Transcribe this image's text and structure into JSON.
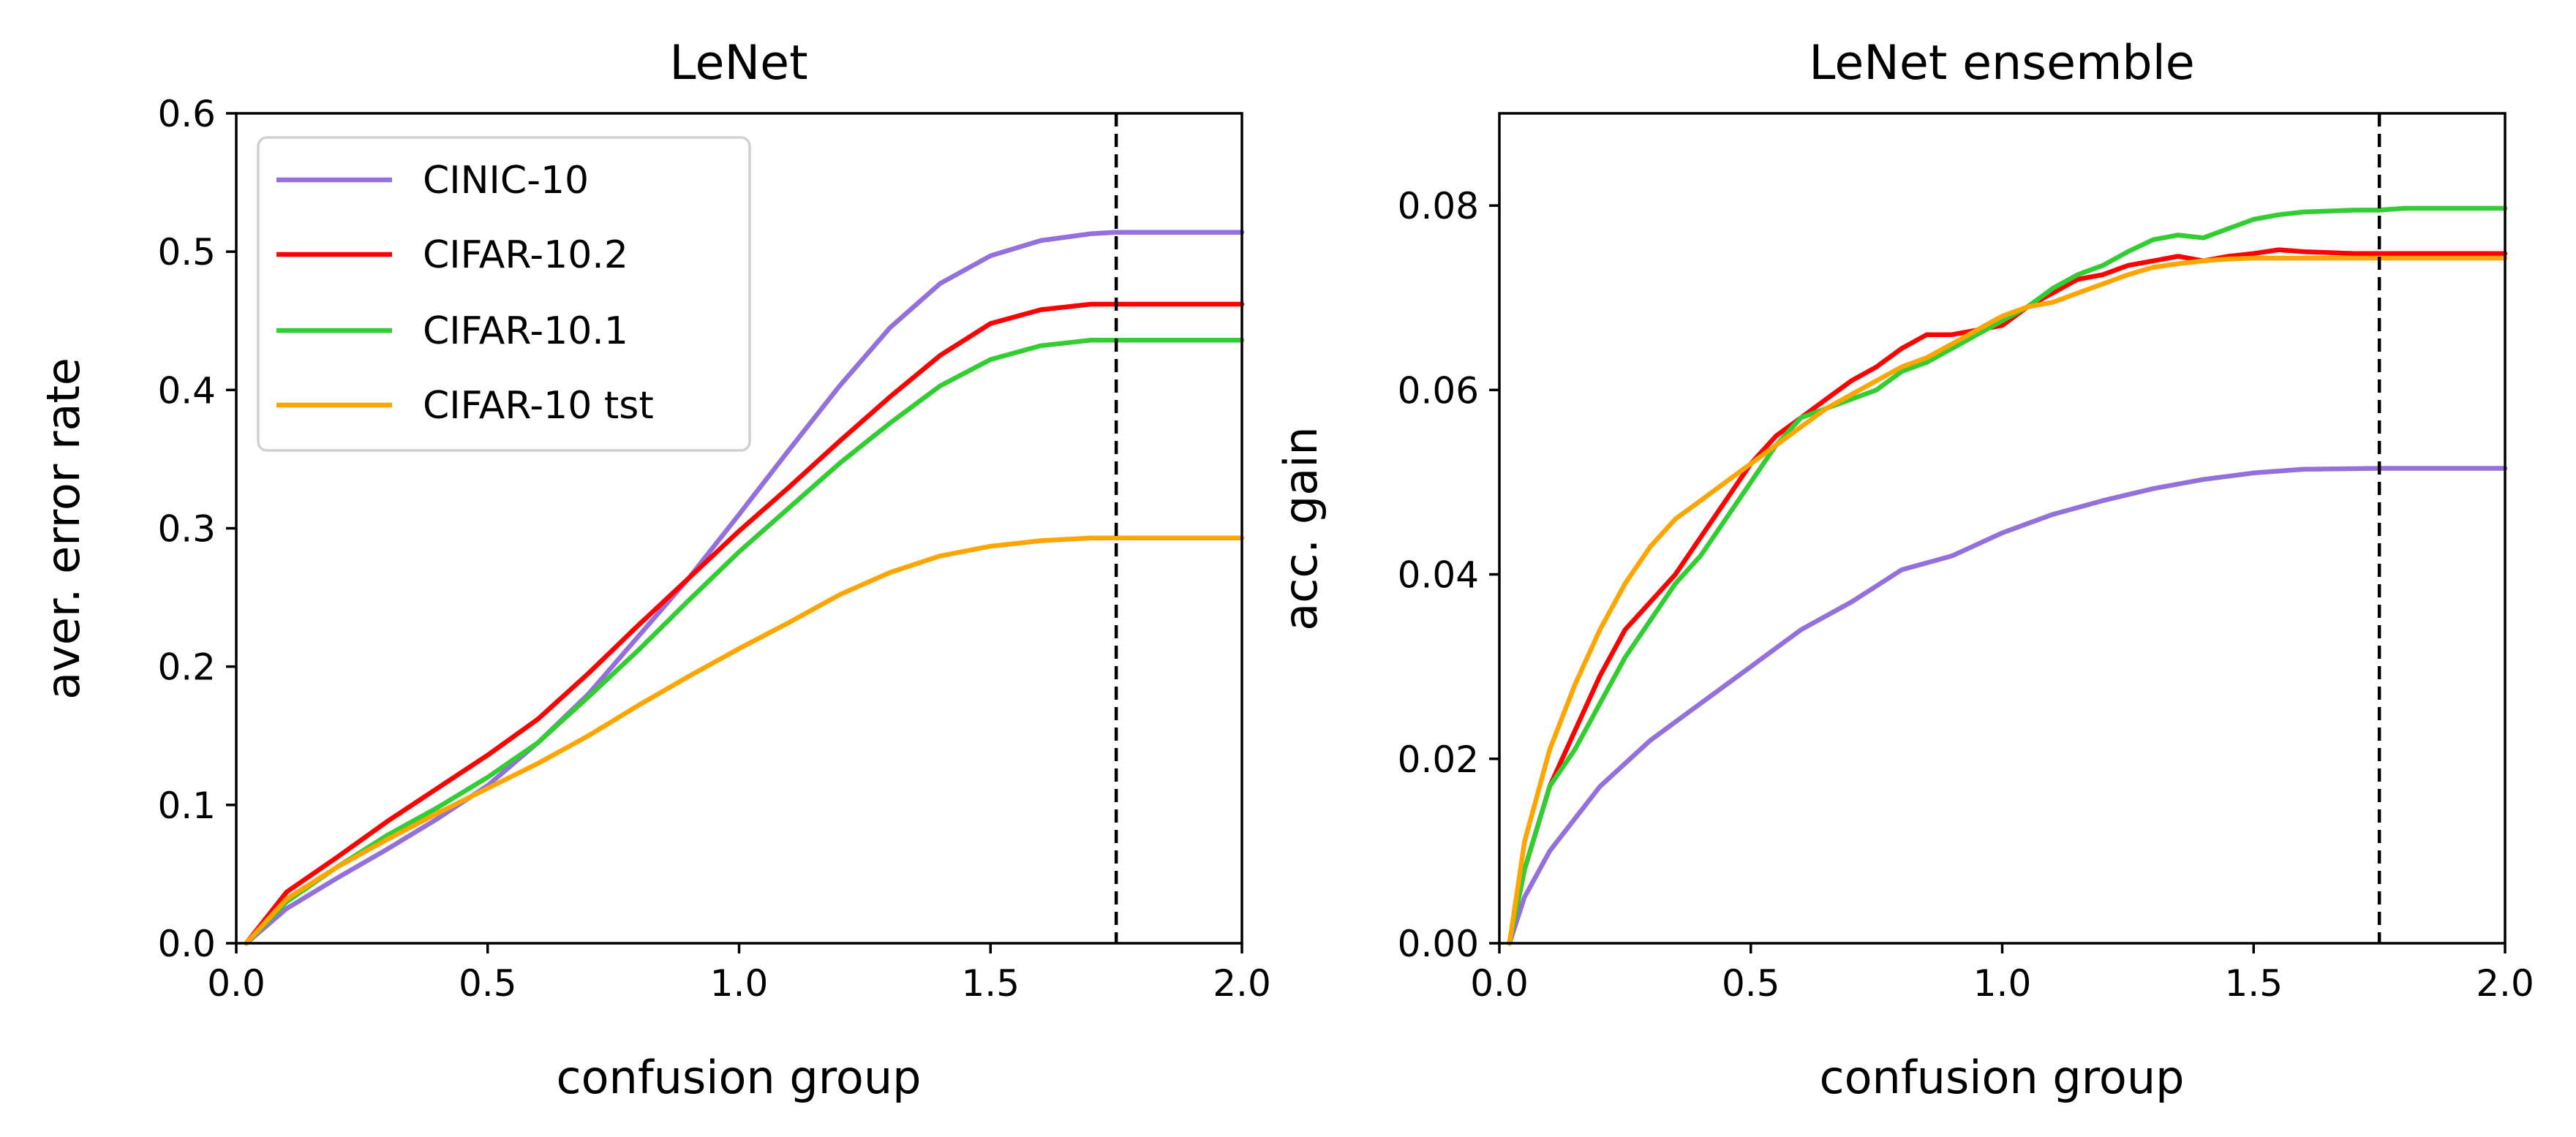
{
  "colors": {
    "CINIC-10": "#9370DB",
    "CIFAR-10.2": "#FF0000",
    "CIFAR-10.1": "#32CD32",
    "CIFAR-10 tst": "#FFA500"
  },
  "chart_data": [
    {
      "type": "line",
      "title": "LeNet",
      "xlabel": "confusion group",
      "ylabel": "aver. error rate",
      "xlim": [
        0,
        2.0
      ],
      "ylim": [
        0,
        0.6
      ],
      "xticks": [
        0.0,
        0.5,
        1.0,
        1.5,
        2.0
      ],
      "xtick_labels": [
        "0.0",
        "0.5",
        "1.0",
        "1.5",
        "2.0"
      ],
      "yticks": [
        0.0,
        0.1,
        0.2,
        0.3,
        0.4,
        0.5,
        0.6
      ],
      "ytick_labels": [
        "0.0",
        "0.1",
        "0.2",
        "0.3",
        "0.4",
        "0.5",
        "0.6"
      ],
      "grid": false,
      "legend": "upper-left",
      "vline_x": 1.75,
      "series": [
        {
          "name": "CINIC-10",
          "x": [
            0.02,
            0.1,
            0.2,
            0.3,
            0.4,
            0.5,
            0.6,
            0.7,
            0.8,
            0.9,
            1.0,
            1.1,
            1.2,
            1.3,
            1.4,
            1.5,
            1.6,
            1.7,
            1.75,
            1.8,
            2.0
          ],
          "y": [
            0.0,
            0.025,
            0.047,
            0.068,
            0.09,
            0.114,
            0.145,
            0.18,
            0.222,
            0.264,
            0.31,
            0.357,
            0.403,
            0.445,
            0.477,
            0.497,
            0.508,
            0.513,
            0.514,
            0.514,
            0.514
          ]
        },
        {
          "name": "CIFAR-10.2",
          "x": [
            0.02,
            0.1,
            0.2,
            0.3,
            0.4,
            0.5,
            0.6,
            0.7,
            0.8,
            0.9,
            1.0,
            1.1,
            1.2,
            1.3,
            1.4,
            1.5,
            1.6,
            1.7,
            1.75,
            1.8,
            2.0
          ],
          "y": [
            0.0,
            0.037,
            0.062,
            0.088,
            0.112,
            0.136,
            0.162,
            0.195,
            0.23,
            0.264,
            0.298,
            0.33,
            0.363,
            0.395,
            0.425,
            0.448,
            0.458,
            0.462,
            0.462,
            0.462,
            0.462
          ]
        },
        {
          "name": "CIFAR-10.1",
          "x": [
            0.02,
            0.1,
            0.2,
            0.3,
            0.4,
            0.5,
            0.6,
            0.7,
            0.8,
            0.9,
            1.0,
            1.1,
            1.2,
            1.3,
            1.4,
            1.5,
            1.6,
            1.7,
            1.75,
            1.8,
            2.0
          ],
          "y": [
            0.0,
            0.03,
            0.055,
            0.078,
            0.098,
            0.12,
            0.145,
            0.178,
            0.212,
            0.248,
            0.283,
            0.315,
            0.347,
            0.376,
            0.403,
            0.422,
            0.432,
            0.436,
            0.436,
            0.436,
            0.436
          ]
        },
        {
          "name": "CIFAR-10 tst",
          "x": [
            0.02,
            0.1,
            0.2,
            0.3,
            0.4,
            0.5,
            0.6,
            0.7,
            0.8,
            0.9,
            1.0,
            1.1,
            1.2,
            1.3,
            1.4,
            1.5,
            1.6,
            1.7,
            1.75,
            1.8,
            2.0
          ],
          "y": [
            0.0,
            0.032,
            0.055,
            0.075,
            0.094,
            0.112,
            0.13,
            0.15,
            0.172,
            0.193,
            0.213,
            0.232,
            0.252,
            0.268,
            0.28,
            0.287,
            0.291,
            0.293,
            0.293,
            0.293,
            0.293
          ]
        }
      ]
    },
    {
      "type": "line",
      "title": "LeNet ensemble",
      "xlabel": "confusion group",
      "ylabel": "acc. gain",
      "xlim": [
        0,
        2.0
      ],
      "ylim": [
        0,
        0.09
      ],
      "xticks": [
        0.0,
        0.5,
        1.0,
        1.5,
        2.0
      ],
      "xtick_labels": [
        "0.0",
        "0.5",
        "1.0",
        "1.5",
        "2.0"
      ],
      "yticks": [
        0.0,
        0.02,
        0.04,
        0.06,
        0.08
      ],
      "ytick_labels": [
        "0.00",
        "0.02",
        "0.04",
        "0.06",
        "0.08"
      ],
      "grid": false,
      "legend": "none",
      "vline_x": 1.75,
      "series": [
        {
          "name": "CINIC-10",
          "x": [
            0.02,
            0.05,
            0.1,
            0.2,
            0.3,
            0.4,
            0.5,
            0.6,
            0.7,
            0.8,
            0.9,
            1.0,
            1.1,
            1.2,
            1.3,
            1.4,
            1.5,
            1.6,
            1.75,
            1.8,
            2.0
          ],
          "y": [
            0.0,
            0.005,
            0.01,
            0.017,
            0.022,
            0.026,
            0.03,
            0.034,
            0.037,
            0.0405,
            0.042,
            0.0445,
            0.0465,
            0.048,
            0.0493,
            0.0503,
            0.051,
            0.0514,
            0.0515,
            0.0515,
            0.0515
          ]
        },
        {
          "name": "CIFAR-10.2",
          "x": [
            0.02,
            0.05,
            0.1,
            0.15,
            0.2,
            0.25,
            0.3,
            0.35,
            0.4,
            0.45,
            0.5,
            0.55,
            0.6,
            0.65,
            0.7,
            0.75,
            0.8,
            0.85,
            0.9,
            0.95,
            1.0,
            1.05,
            1.1,
            1.15,
            1.2,
            1.25,
            1.3,
            1.35,
            1.4,
            1.45,
            1.5,
            1.55,
            1.6,
            1.7,
            1.75,
            1.8,
            2.0
          ],
          "y": [
            0.0,
            0.008,
            0.017,
            0.023,
            0.029,
            0.034,
            0.037,
            0.04,
            0.044,
            0.048,
            0.052,
            0.055,
            0.057,
            0.059,
            0.061,
            0.0625,
            0.0645,
            0.066,
            0.066,
            0.0665,
            0.067,
            0.069,
            0.0705,
            0.072,
            0.0725,
            0.0735,
            0.074,
            0.0745,
            0.074,
            0.0745,
            0.0748,
            0.0752,
            0.075,
            0.0748,
            0.0748,
            0.0748,
            0.0748
          ]
        },
        {
          "name": "CIFAR-10.1",
          "x": [
            0.02,
            0.05,
            0.1,
            0.15,
            0.2,
            0.25,
            0.3,
            0.35,
            0.4,
            0.45,
            0.5,
            0.55,
            0.6,
            0.65,
            0.7,
            0.75,
            0.8,
            0.85,
            0.9,
            0.95,
            1.0,
            1.05,
            1.1,
            1.15,
            1.2,
            1.25,
            1.3,
            1.35,
            1.4,
            1.45,
            1.5,
            1.55,
            1.6,
            1.7,
            1.75,
            1.8,
            2.0
          ],
          "y": [
            0.0,
            0.008,
            0.017,
            0.021,
            0.026,
            0.031,
            0.035,
            0.039,
            0.042,
            0.046,
            0.05,
            0.054,
            0.057,
            0.058,
            0.059,
            0.06,
            0.062,
            0.063,
            0.0645,
            0.066,
            0.0675,
            0.069,
            0.071,
            0.0725,
            0.0735,
            0.075,
            0.0763,
            0.0768,
            0.0765,
            0.0775,
            0.0785,
            0.079,
            0.0793,
            0.0795,
            0.0795,
            0.0797,
            0.0797
          ]
        },
        {
          "name": "CIFAR-10 tst",
          "x": [
            0.02,
            0.05,
            0.1,
            0.15,
            0.2,
            0.25,
            0.3,
            0.35,
            0.4,
            0.45,
            0.5,
            0.55,
            0.6,
            0.65,
            0.7,
            0.75,
            0.8,
            0.85,
            0.9,
            0.95,
            1.0,
            1.05,
            1.1,
            1.15,
            1.2,
            1.25,
            1.3,
            1.35,
            1.4,
            1.45,
            1.5,
            1.55,
            1.6,
            1.7,
            1.75,
            1.8,
            2.0
          ],
          "y": [
            0.0,
            0.011,
            0.021,
            0.028,
            0.034,
            0.039,
            0.043,
            0.046,
            0.048,
            0.05,
            0.052,
            0.054,
            0.056,
            0.058,
            0.0595,
            0.061,
            0.0625,
            0.0635,
            0.065,
            0.0665,
            0.068,
            0.069,
            0.0695,
            0.0705,
            0.0715,
            0.0725,
            0.0733,
            0.0737,
            0.074,
            0.0742,
            0.0743,
            0.0743,
            0.0743,
            0.0743,
            0.0743,
            0.0743,
            0.0743
          ]
        }
      ]
    }
  ]
}
